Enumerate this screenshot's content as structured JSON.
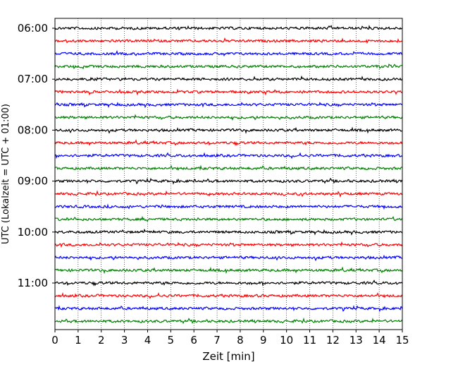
{
  "chart_data": {
    "type": "line",
    "xlabel": "Zeit  [min]",
    "ylabel": "UTC (Lokalzeit = UTC + 01:00)",
    "xlim": [
      0,
      15
    ],
    "x_ticks": [
      "0",
      "1",
      "2",
      "3",
      "4",
      "5",
      "6",
      "7",
      "8",
      "9",
      "10",
      "11",
      "12",
      "13",
      "14",
      "15"
    ],
    "y_ticks": [
      "06:00",
      "07:00",
      "08:00",
      "09:00",
      "10:00",
      "11:00"
    ],
    "grid": "vertical dotted",
    "trace_colors": [
      "#000000",
      "#ff0000",
      "#0000ff",
      "#008000"
    ],
    "start_time": "06:00",
    "interval_minutes": 15,
    "trace_count": 24
  }
}
